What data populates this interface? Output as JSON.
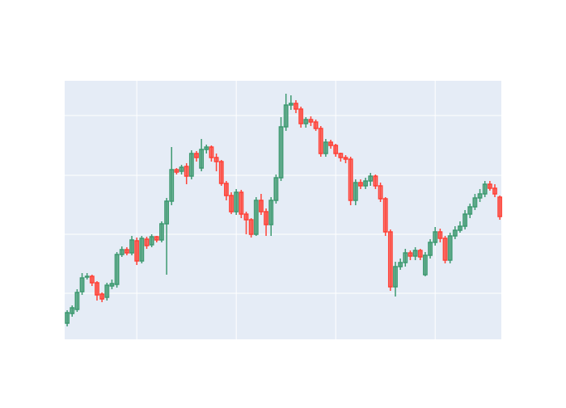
{
  "chart_data": {
    "type": "candlestick",
    "x": [
      0,
      1,
      2,
      3,
      4,
      5,
      6,
      7,
      8,
      9,
      10,
      11,
      12,
      13,
      14,
      15,
      16,
      17,
      18,
      19,
      20,
      21,
      22,
      23,
      24,
      25,
      26,
      27,
      28,
      29,
      30,
      31,
      32,
      33,
      34,
      35,
      36,
      37,
      38,
      39,
      40,
      41,
      42,
      43,
      44,
      45,
      46,
      47,
      48,
      49,
      50,
      51,
      52,
      53,
      54,
      55,
      56,
      57,
      58,
      59,
      60,
      61,
      62,
      63,
      64,
      65,
      66,
      67,
      68,
      69,
      70,
      71,
      72,
      73,
      74,
      75,
      76,
      77,
      78,
      79,
      80,
      81,
      82,
      83,
      84,
      85,
      86,
      87
    ],
    "open": [
      20,
      32,
      37,
      59,
      77,
      78,
      70,
      56,
      52,
      66,
      68,
      105,
      111,
      107,
      122,
      97,
      124,
      117,
      127,
      123,
      143,
      171,
      210,
      208,
      214,
      202,
      230,
      212,
      235,
      238,
      225,
      220,
      193,
      178,
      158,
      182,
      155,
      148,
      130,
      172,
      158,
      142,
      172,
      200,
      263,
      290,
      292,
      285,
      267,
      272,
      269,
      261,
      230,
      244,
      240,
      230,
      225,
      223,
      172,
      194,
      190,
      196,
      202,
      190,
      174,
      133,
      65,
      90,
      95,
      107,
      103,
      110,
      80,
      104,
      120,
      133,
      125,
      98,
      128,
      135,
      140,
      155,
      164,
      175,
      180,
      192,
      187,
      176
    ],
    "high": [
      36,
      42,
      62,
      82,
      82,
      80,
      72,
      58,
      70,
      74,
      108,
      115,
      114,
      128,
      126,
      128,
      127,
      130,
      128,
      146,
      175,
      238,
      212,
      216,
      218,
      234,
      233,
      248,
      241,
      240,
      230,
      222,
      196,
      182,
      186,
      185,
      158,
      150,
      176,
      180,
      162,
      176,
      204,
      275,
      304,
      302,
      296,
      288,
      275,
      276,
      272,
      264,
      248,
      247,
      242,
      231,
      228,
      226,
      198,
      198,
      200,
      206,
      204,
      194,
      176,
      136,
      96,
      100,
      112,
      110,
      114,
      112,
      108,
      124,
      139,
      137,
      128,
      132,
      140,
      146,
      160,
      168,
      180,
      186,
      196,
      196,
      192,
      178
    ],
    "low": [
      16,
      28,
      34,
      55,
      74,
      66,
      48,
      46,
      48,
      62,
      64,
      102,
      104,
      104,
      92,
      94,
      112,
      114,
      120,
      120,
      80,
      166,
      204,
      204,
      192,
      198,
      220,
      208,
      230,
      220,
      208,
      190,
      172,
      155,
      154,
      150,
      130,
      126,
      128,
      154,
      128,
      128,
      168,
      196,
      258,
      284,
      280,
      262,
      262,
      264,
      258,
      226,
      226,
      236,
      226,
      220,
      218,
      166,
      166,
      186,
      186,
      190,
      186,
      170,
      128,
      60,
      53,
      86,
      90,
      98,
      98,
      98,
      78,
      100,
      116,
      120,
      94,
      94,
      124,
      132,
      136,
      150,
      160,
      170,
      176,
      184,
      176,
      148
    ],
    "close": [
      33,
      39,
      58,
      76,
      78,
      70,
      55,
      50,
      67,
      69,
      105,
      111,
      107,
      123,
      97,
      125,
      116,
      127,
      123,
      143,
      171,
      210,
      207,
      213,
      202,
      230,
      225,
      235,
      238,
      225,
      220,
      193,
      178,
      158,
      182,
      155,
      148,
      130,
      172,
      158,
      142,
      172,
      200,
      263,
      290,
      292,
      285,
      267,
      272,
      269,
      261,
      230,
      244,
      240,
      230,
      225,
      223,
      172,
      194,
      190,
      196,
      202,
      190,
      174,
      133,
      65,
      90,
      95,
      107,
      103,
      110,
      102,
      104,
      120,
      133,
      125,
      98,
      128,
      135,
      140,
      155,
      164,
      175,
      180,
      192,
      187,
      180,
      152
    ],
    "increasing_color": "#3d9970",
    "decreasing_color": "#ff4136",
    "xlim": [
      -0.5,
      87.3
    ],
    "ylim": [
      0,
      320
    ],
    "xticks": [
      14,
      34,
      54,
      74
    ],
    "yticks": [
      57,
      130,
      203,
      277
    ],
    "grid": true
  }
}
